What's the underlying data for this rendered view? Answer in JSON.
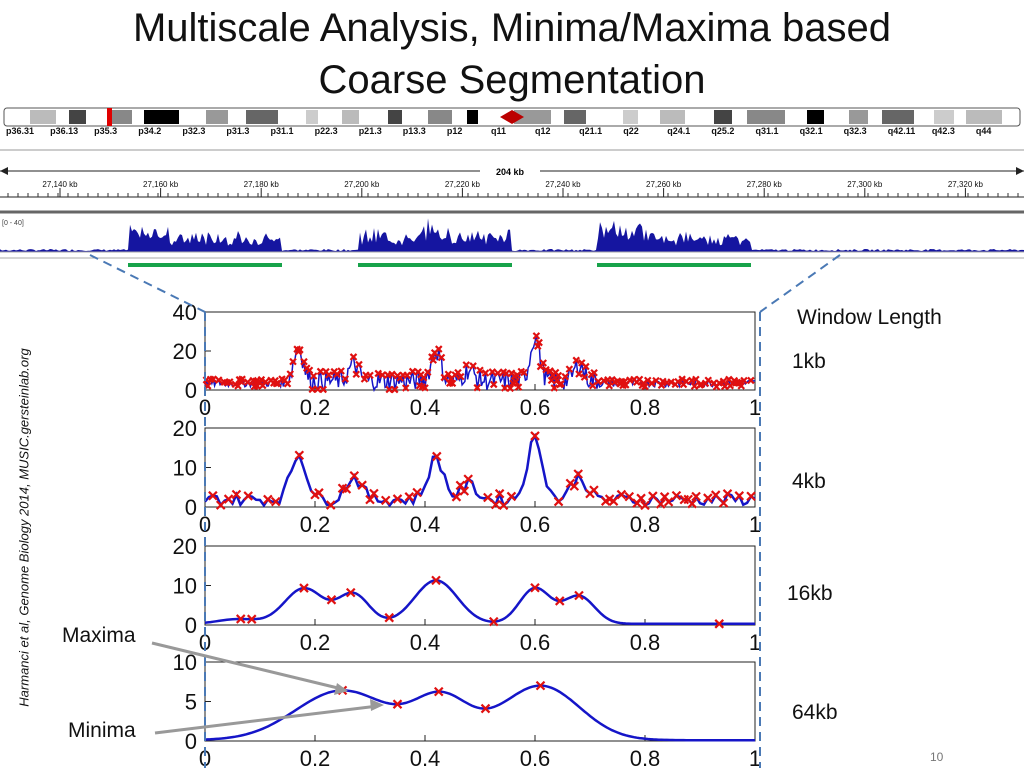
{
  "title_line1": "Multiscale Analysis, Minima/Maxima based",
  "title_line2": "Coarse Segmentation",
  "citation": "Harmanci et al, Genome Biology 2014, MUSIC.gersteinlab.org",
  "window_length_label": "Window Length",
  "scale_labels": [
    "1kb",
    "4kb",
    "16kb",
    "64kb"
  ],
  "maxima_label": "Maxima",
  "minima_label": "Minima",
  "page_number": "10",
  "colors": {
    "signal": "#1515c8",
    "marker": "#e01010",
    "segment": "#17a34a",
    "dash": "#4a79b5",
    "arrow": "#999999"
  },
  "genome_browser": {
    "band_labels": [
      "p36.31",
      "p36.13",
      "p35.3",
      "p34.2",
      "p32.3",
      "p31.3",
      "p31.1",
      "p22.3",
      "p21.3",
      "p13.3",
      "p12",
      "q11",
      "q12",
      "q21.1",
      "q22",
      "q24.1",
      "q25.2",
      "q31.1",
      "q32.1",
      "q32.3",
      "q42.11",
      "q42.3",
      "q44"
    ],
    "span_label": "204 kb",
    "coord_labels": [
      "27,140 kb",
      "27,160 kb",
      "27,180 kb",
      "27,200 kb",
      "27,220 kb",
      "27,240 kb",
      "27,260 kb",
      "27,280 kb",
      "27,300 kb",
      "27,320 kb"
    ],
    "track_range": "[0 - 40]"
  },
  "chart_data": [
    {
      "type": "line",
      "window": "1kb",
      "ylim": [
        0,
        40
      ],
      "yticks": [
        "0",
        "20",
        "40"
      ],
      "xlim": [
        0,
        1
      ],
      "xticks": [
        "0",
        "0.2",
        "0.4",
        "0.6",
        "0.8",
        "1"
      ]
    },
    {
      "type": "line",
      "window": "4kb",
      "ylim": [
        0,
        20
      ],
      "yticks": [
        "0",
        "10",
        "20"
      ],
      "xlim": [
        0,
        1
      ],
      "xticks": [
        "0",
        "0.2",
        "0.4",
        "0.6",
        "0.8",
        "1"
      ]
    },
    {
      "type": "line",
      "window": "16kb",
      "ylim": [
        0,
        20
      ],
      "yticks": [
        "0",
        "10",
        "20"
      ],
      "xlim": [
        0,
        1
      ],
      "xticks": [
        "0",
        "0.2",
        "0.4",
        "0.6",
        "0.8",
        "1"
      ]
    },
    {
      "type": "line",
      "window": "64kb",
      "ylim": [
        0,
        10
      ],
      "yticks": [
        "0",
        "5",
        "10"
      ],
      "xlim": [
        0,
        1
      ],
      "xticks": [
        "0",
        "0.2",
        "0.4",
        "0.6",
        "0.8",
        "1"
      ]
    }
  ]
}
